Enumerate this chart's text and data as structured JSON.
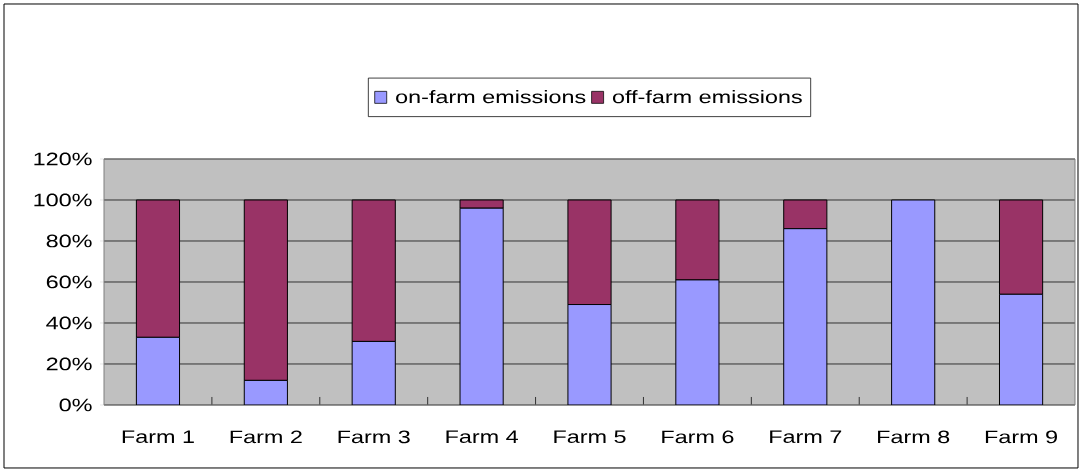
{
  "chart_data": {
    "type": "bar",
    "stacked": true,
    "categories": [
      "Farm 1",
      "Farm 2",
      "Farm 3",
      "Farm 4",
      "Farm 5",
      "Farm 6",
      "Farm 7",
      "Farm 8",
      "Farm 9"
    ],
    "series": [
      {
        "name": "on-farm emissions",
        "color": "#9999ff",
        "values": [
          33,
          12,
          31,
          96,
          49,
          61,
          86,
          100,
          54
        ]
      },
      {
        "name": "off-farm emissions",
        "color": "#993366",
        "values": [
          67,
          88,
          69,
          4,
          51,
          39,
          14,
          0,
          46
        ]
      }
    ],
    "ylim": [
      0,
      120
    ],
    "yticks": [
      {
        "value": 0,
        "label": "0%"
      },
      {
        "value": 20,
        "label": "20%"
      },
      {
        "value": 40,
        "label": "40%"
      },
      {
        "value": 60,
        "label": "60%"
      },
      {
        "value": 80,
        "label": "80%"
      },
      {
        "value": 100,
        "label": "100%"
      },
      {
        "value": 120,
        "label": "120%"
      }
    ],
    "grid": "y",
    "legend": "top"
  }
}
